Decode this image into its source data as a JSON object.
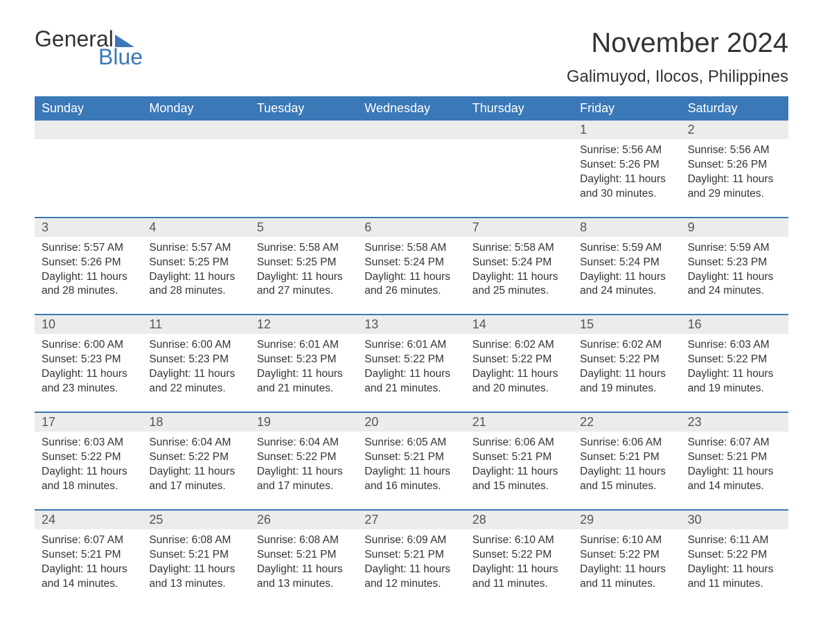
{
  "brand": {
    "word1": "General",
    "word2": "Blue"
  },
  "title": "November 2024",
  "location": "Galimuyod, Ilocos, Philippines",
  "colors": {
    "header_bg": "#3a78b7",
    "header_text": "#ffffff",
    "daynum_bg": "#ececec",
    "text": "#333333",
    "accent": "#3a78b7"
  },
  "typography": {
    "title_fontsize": 40,
    "location_fontsize": 24,
    "dow_fontsize": 18,
    "body_fontsize": 15.5
  },
  "dow": [
    "Sunday",
    "Monday",
    "Tuesday",
    "Wednesday",
    "Thursday",
    "Friday",
    "Saturday"
  ],
  "weeks": [
    [
      null,
      null,
      null,
      null,
      null,
      {
        "n": "1",
        "sr": "5:56 AM",
        "ss": "5:26 PM",
        "dl": "11 hours and 30 minutes."
      },
      {
        "n": "2",
        "sr": "5:56 AM",
        "ss": "5:26 PM",
        "dl": "11 hours and 29 minutes."
      }
    ],
    [
      {
        "n": "3",
        "sr": "5:57 AM",
        "ss": "5:26 PM",
        "dl": "11 hours and 28 minutes."
      },
      {
        "n": "4",
        "sr": "5:57 AM",
        "ss": "5:25 PM",
        "dl": "11 hours and 28 minutes."
      },
      {
        "n": "5",
        "sr": "5:58 AM",
        "ss": "5:25 PM",
        "dl": "11 hours and 27 minutes."
      },
      {
        "n": "6",
        "sr": "5:58 AM",
        "ss": "5:24 PM",
        "dl": "11 hours and 26 minutes."
      },
      {
        "n": "7",
        "sr": "5:58 AM",
        "ss": "5:24 PM",
        "dl": "11 hours and 25 minutes."
      },
      {
        "n": "8",
        "sr": "5:59 AM",
        "ss": "5:24 PM",
        "dl": "11 hours and 24 minutes."
      },
      {
        "n": "9",
        "sr": "5:59 AM",
        "ss": "5:23 PM",
        "dl": "11 hours and 24 minutes."
      }
    ],
    [
      {
        "n": "10",
        "sr": "6:00 AM",
        "ss": "5:23 PM",
        "dl": "11 hours and 23 minutes."
      },
      {
        "n": "11",
        "sr": "6:00 AM",
        "ss": "5:23 PM",
        "dl": "11 hours and 22 minutes."
      },
      {
        "n": "12",
        "sr": "6:01 AM",
        "ss": "5:23 PM",
        "dl": "11 hours and 21 minutes."
      },
      {
        "n": "13",
        "sr": "6:01 AM",
        "ss": "5:22 PM",
        "dl": "11 hours and 21 minutes."
      },
      {
        "n": "14",
        "sr": "6:02 AM",
        "ss": "5:22 PM",
        "dl": "11 hours and 20 minutes."
      },
      {
        "n": "15",
        "sr": "6:02 AM",
        "ss": "5:22 PM",
        "dl": "11 hours and 19 minutes."
      },
      {
        "n": "16",
        "sr": "6:03 AM",
        "ss": "5:22 PM",
        "dl": "11 hours and 19 minutes."
      }
    ],
    [
      {
        "n": "17",
        "sr": "6:03 AM",
        "ss": "5:22 PM",
        "dl": "11 hours and 18 minutes."
      },
      {
        "n": "18",
        "sr": "6:04 AM",
        "ss": "5:22 PM",
        "dl": "11 hours and 17 minutes."
      },
      {
        "n": "19",
        "sr": "6:04 AM",
        "ss": "5:22 PM",
        "dl": "11 hours and 17 minutes."
      },
      {
        "n": "20",
        "sr": "6:05 AM",
        "ss": "5:21 PM",
        "dl": "11 hours and 16 minutes."
      },
      {
        "n": "21",
        "sr": "6:06 AM",
        "ss": "5:21 PM",
        "dl": "11 hours and 15 minutes."
      },
      {
        "n": "22",
        "sr": "6:06 AM",
        "ss": "5:21 PM",
        "dl": "11 hours and 15 minutes."
      },
      {
        "n": "23",
        "sr": "6:07 AM",
        "ss": "5:21 PM",
        "dl": "11 hours and 14 minutes."
      }
    ],
    [
      {
        "n": "24",
        "sr": "6:07 AM",
        "ss": "5:21 PM",
        "dl": "11 hours and 14 minutes."
      },
      {
        "n": "25",
        "sr": "6:08 AM",
        "ss": "5:21 PM",
        "dl": "11 hours and 13 minutes."
      },
      {
        "n": "26",
        "sr": "6:08 AM",
        "ss": "5:21 PM",
        "dl": "11 hours and 13 minutes."
      },
      {
        "n": "27",
        "sr": "6:09 AM",
        "ss": "5:21 PM",
        "dl": "11 hours and 12 minutes."
      },
      {
        "n": "28",
        "sr": "6:10 AM",
        "ss": "5:22 PM",
        "dl": "11 hours and 11 minutes."
      },
      {
        "n": "29",
        "sr": "6:10 AM",
        "ss": "5:22 PM",
        "dl": "11 hours and 11 minutes."
      },
      {
        "n": "30",
        "sr": "6:11 AM",
        "ss": "5:22 PM",
        "dl": "11 hours and 11 minutes."
      }
    ]
  ],
  "labels": {
    "sunrise": "Sunrise:",
    "sunset": "Sunset:",
    "daylight": "Daylight:"
  }
}
